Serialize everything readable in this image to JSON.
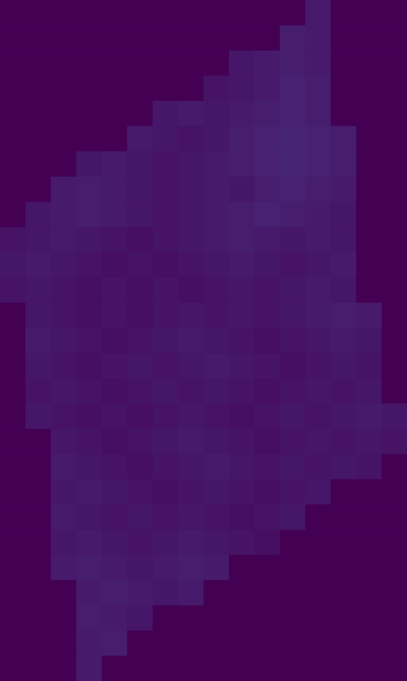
{
  "chart_data": {
    "type": "heatmap",
    "tick_labels": false,
    "color_range": [
      0,
      1
    ],
    "cells": [
      [
        0,
        0,
        0,
        0,
        0,
        0,
        0,
        0,
        0,
        0,
        0,
        0,
        0.07,
        0,
        0,
        0
      ],
      [
        0,
        0,
        0,
        0,
        0,
        0,
        0,
        0,
        0,
        0,
        0,
        0.08,
        0.07,
        0,
        0,
        0
      ],
      [
        0,
        0,
        0,
        0,
        0,
        0,
        0,
        0,
        0,
        0.06,
        0.07,
        0.08,
        0.07,
        0,
        0,
        0
      ],
      [
        0,
        0,
        0,
        0,
        0,
        0,
        0,
        0,
        0.05,
        0.06,
        0.07,
        0.09,
        0.08,
        0,
        0,
        0
      ],
      [
        0,
        0,
        0,
        0,
        0,
        0,
        0.06,
        0.07,
        0.06,
        0.07,
        0.08,
        0.09,
        0.08,
        0,
        0,
        0
      ],
      [
        0,
        0,
        0,
        0,
        0,
        0.07,
        0.06,
        0.05,
        0.06,
        0.08,
        0.09,
        0.1,
        0.09,
        0.08,
        0,
        0
      ],
      [
        0,
        0,
        0,
        0.06,
        0.07,
        0.06,
        0.05,
        0.06,
        0.07,
        0.08,
        0.09,
        0.1,
        0.09,
        0.08,
        0,
        0
      ],
      [
        0,
        0,
        0.07,
        0.08,
        0.07,
        0.06,
        0.05,
        0.06,
        0.07,
        0.06,
        0.08,
        0.09,
        0.08,
        0.07,
        0,
        0
      ],
      [
        0,
        0.06,
        0.07,
        0.08,
        0.07,
        0.06,
        0.05,
        0.06,
        0.07,
        0.08,
        0.09,
        0.08,
        0.07,
        0.06,
        0,
        0
      ],
      [
        0.05,
        0.06,
        0.07,
        0.06,
        0.05,
        0.04,
        0.05,
        0.06,
        0.07,
        0.08,
        0.07,
        0.06,
        0.07,
        0.06,
        0,
        0
      ],
      [
        0.06,
        0.07,
        0.06,
        0.05,
        0.04,
        0.05,
        0.04,
        0.05,
        0.06,
        0.07,
        0.06,
        0.05,
        0.06,
        0.07,
        0,
        0
      ],
      [
        0.05,
        0.06,
        0.05,
        0.04,
        0.05,
        0.04,
        0.05,
        0.04,
        0.05,
        0.06,
        0.05,
        0.06,
        0.07,
        0.06,
        0,
        0
      ],
      [
        0,
        0.06,
        0.05,
        0.04,
        0.05,
        0.04,
        0.05,
        0.06,
        0.05,
        0.06,
        0.05,
        0.06,
        0.07,
        0.08,
        0.07,
        0
      ],
      [
        0,
        0.07,
        0.06,
        0.05,
        0.04,
        0.05,
        0.06,
        0.07,
        0.06,
        0.05,
        0.04,
        0.05,
        0.06,
        0.07,
        0.06,
        0
      ],
      [
        0,
        0.06,
        0.05,
        0.04,
        0.05,
        0.06,
        0.05,
        0.06,
        0.07,
        0.06,
        0.05,
        0.04,
        0.05,
        0.06,
        0.05,
        0
      ],
      [
        0,
        0.05,
        0.06,
        0.05,
        0.04,
        0.05,
        0.06,
        0.05,
        0.06,
        0.05,
        0.04,
        0.05,
        0.06,
        0.05,
        0.06,
        0
      ],
      [
        0,
        0.06,
        0.05,
        0.04,
        0.05,
        0.04,
        0.05,
        0.06,
        0.05,
        0.04,
        0.05,
        0.06,
        0.05,
        0.06,
        0.07,
        0.06
      ],
      [
        0,
        0,
        0.06,
        0.05,
        0.04,
        0.05,
        0.06,
        0.07,
        0.06,
        0.05,
        0.04,
        0.05,
        0.06,
        0.05,
        0.06,
        0.05
      ],
      [
        0,
        0,
        0.07,
        0.06,
        0.05,
        0.04,
        0.05,
        0.06,
        0.07,
        0.06,
        0.05,
        0.06,
        0.05,
        0.06,
        0.05,
        0
      ],
      [
        0,
        0,
        0.06,
        0.07,
        0.06,
        0.05,
        0.04,
        0.05,
        0.06,
        0.05,
        0.04,
        0.05,
        0.06,
        0,
        0,
        0
      ],
      [
        0,
        0,
        0.07,
        0.06,
        0.05,
        0.06,
        0.05,
        0.06,
        0.05,
        0.04,
        0.05,
        0.06,
        0,
        0,
        0,
        0
      ],
      [
        0,
        0,
        0.06,
        0.07,
        0.06,
        0.05,
        0.06,
        0.07,
        0.06,
        0.05,
        0.04,
        0,
        0,
        0,
        0,
        0
      ],
      [
        0,
        0,
        0.07,
        0.08,
        0.07,
        0.06,
        0.07,
        0.08,
        0.07,
        0,
        0,
        0,
        0,
        0,
        0,
        0
      ],
      [
        0,
        0,
        0,
        0.07,
        0.08,
        0.07,
        0.06,
        0.07,
        0,
        0,
        0,
        0,
        0,
        0,
        0,
        0
      ],
      [
        0,
        0,
        0,
        0.08,
        0.07,
        0.06,
        0,
        0,
        0,
        0,
        0,
        0,
        0,
        0,
        0,
        0
      ],
      [
        0,
        0,
        0,
        0.07,
        0.08,
        0,
        0,
        0,
        0,
        0,
        0,
        0,
        0,
        0,
        0,
        0
      ],
      [
        0,
        0,
        0,
        0.07,
        0,
        0,
        0,
        0,
        0,
        0,
        0,
        0,
        0,
        0,
        0,
        0
      ]
    ]
  }
}
